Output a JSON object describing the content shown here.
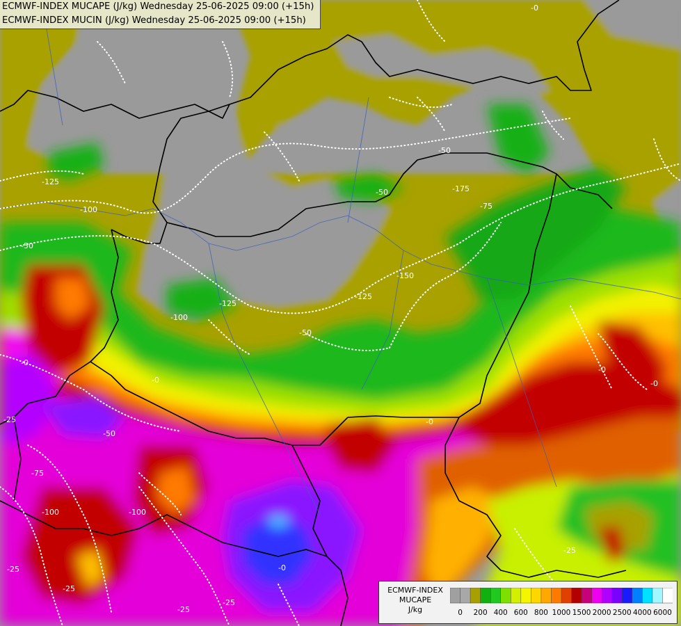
{
  "header": {
    "line1": "ECMWF-INDEX MUCAPE (J/kg) Wednesday 25-06-2025 09:00 (+15h)",
    "line2": "ECMWF-INDEX MUCIN (J/kg) Wednesday 25-06-2025 09:00 (+15h)"
  },
  "legend": {
    "title": "ECMWF-INDEX",
    "variable": "MUCAPE",
    "unit": "J/kg",
    "colors": [
      "#a0a0a0",
      "#a8a8a8",
      "#a7a000",
      "#11b00f",
      "#20c820",
      "#7ee000",
      "#d4f000",
      "#f5f500",
      "#ffd700",
      "#ffa800",
      "#ff7a00",
      "#e04000",
      "#b30000",
      "#c8007a",
      "#ee00ee",
      "#b000ff",
      "#7a00ff",
      "#1a1aff",
      "#0080ff",
      "#00e0ff",
      "#9ff7ff",
      "#ffffff"
    ],
    "tick_labels": [
      "0",
      "200",
      "400",
      "600",
      "800",
      "1000",
      "1500",
      "2000",
      "2500",
      "4000",
      "6000"
    ]
  },
  "map": {
    "cin_contour_labels": [
      "0",
      "-25",
      "-50",
      "-75",
      "-100",
      "-125",
      "-150",
      "-175"
    ]
  }
}
